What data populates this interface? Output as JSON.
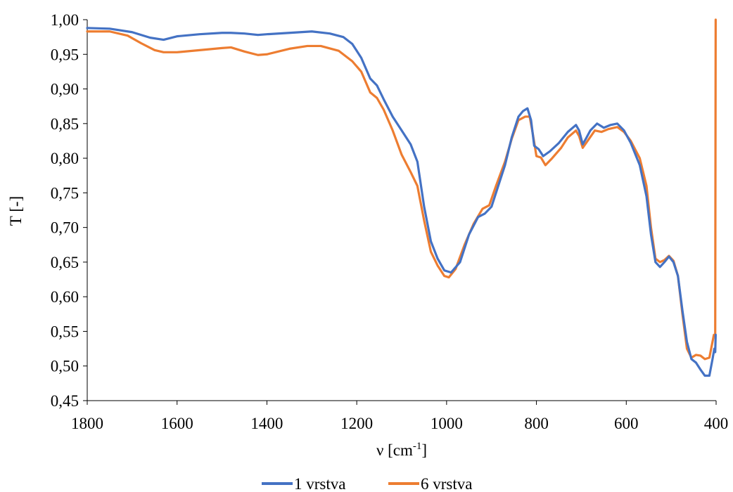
{
  "chart_data": {
    "type": "line",
    "title": "",
    "xlabel": "ν [cm-1]",
    "xlabel_parts": {
      "main": "ν [cm",
      "sup": "-1",
      "close": "]"
    },
    "ylabel": "T [-]",
    "xlim": [
      1800,
      400
    ],
    "x_reversed": true,
    "ylim": [
      0.45,
      1.0
    ],
    "x_ticks": [
      1800,
      1600,
      1400,
      1200,
      1000,
      800,
      600,
      400
    ],
    "x_tick_labels": [
      "1800",
      "1600",
      "1400",
      "1200",
      "1000",
      "800",
      "600",
      "400"
    ],
    "y_ticks": [
      0.45,
      0.5,
      0.55,
      0.6,
      0.65,
      0.7,
      0.75,
      0.8,
      0.85,
      0.9,
      0.95,
      1.0
    ],
    "y_tick_labels": [
      "0,45",
      "0,50",
      "0,55",
      "0,60",
      "0,65",
      "0,70",
      "0,75",
      "0,80",
      "0,85",
      "0,90",
      "0,95",
      "1,00"
    ],
    "grid": false,
    "legend_position": "bottom",
    "series": [
      {
        "name": "1 vrstva",
        "color": "#4472C4",
        "points": [
          [
            1800,
            0.988
          ],
          [
            1750,
            0.987
          ],
          [
            1700,
            0.982
          ],
          [
            1660,
            0.974
          ],
          [
            1630,
            0.971
          ],
          [
            1600,
            0.976
          ],
          [
            1550,
            0.979
          ],
          [
            1500,
            0.981
          ],
          [
            1480,
            0.981
          ],
          [
            1450,
            0.98
          ],
          [
            1420,
            0.978
          ],
          [
            1400,
            0.979
          ],
          [
            1350,
            0.981
          ],
          [
            1300,
            0.983
          ],
          [
            1260,
            0.98
          ],
          [
            1230,
            0.975
          ],
          [
            1210,
            0.965
          ],
          [
            1190,
            0.945
          ],
          [
            1170,
            0.915
          ],
          [
            1155,
            0.905
          ],
          [
            1140,
            0.885
          ],
          [
            1120,
            0.86
          ],
          [
            1100,
            0.84
          ],
          [
            1080,
            0.82
          ],
          [
            1065,
            0.795
          ],
          [
            1050,
            0.73
          ],
          [
            1035,
            0.68
          ],
          [
            1020,
            0.655
          ],
          [
            1005,
            0.638
          ],
          [
            990,
            0.635
          ],
          [
            970,
            0.65
          ],
          [
            950,
            0.69
          ],
          [
            930,
            0.715
          ],
          [
            915,
            0.72
          ],
          [
            900,
            0.73
          ],
          [
            885,
            0.76
          ],
          [
            870,
            0.79
          ],
          [
            855,
            0.83
          ],
          [
            840,
            0.86
          ],
          [
            830,
            0.868
          ],
          [
            820,
            0.872
          ],
          [
            812,
            0.855
          ],
          [
            805,
            0.818
          ],
          [
            795,
            0.813
          ],
          [
            785,
            0.803
          ],
          [
            770,
            0.81
          ],
          [
            750,
            0.822
          ],
          [
            730,
            0.838
          ],
          [
            712,
            0.848
          ],
          [
            705,
            0.84
          ],
          [
            697,
            0.82
          ],
          [
            690,
            0.828
          ],
          [
            680,
            0.84
          ],
          [
            665,
            0.85
          ],
          [
            650,
            0.844
          ],
          [
            635,
            0.848
          ],
          [
            620,
            0.85
          ],
          [
            605,
            0.84
          ],
          [
            590,
            0.822
          ],
          [
            570,
            0.79
          ],
          [
            555,
            0.745
          ],
          [
            545,
            0.69
          ],
          [
            535,
            0.65
          ],
          [
            525,
            0.643
          ],
          [
            515,
            0.65
          ],
          [
            505,
            0.658
          ],
          [
            495,
            0.65
          ],
          [
            485,
            0.63
          ],
          [
            475,
            0.58
          ],
          [
            465,
            0.535
          ],
          [
            455,
            0.51
          ],
          [
            445,
            0.505
          ],
          [
            435,
            0.495
          ],
          [
            425,
            0.486
          ],
          [
            415,
            0.486
          ],
          [
            408,
            0.51
          ],
          [
            404,
            0.525
          ],
          [
            402,
            0.52
          ],
          [
            401,
            0.545
          ]
        ]
      },
      {
        "name": "6 vrstva",
        "color": "#ED7D31",
        "points": [
          [
            1800,
            0.983
          ],
          [
            1750,
            0.983
          ],
          [
            1710,
            0.977
          ],
          [
            1680,
            0.966
          ],
          [
            1650,
            0.956
          ],
          [
            1630,
            0.953
          ],
          [
            1600,
            0.953
          ],
          [
            1550,
            0.956
          ],
          [
            1500,
            0.959
          ],
          [
            1480,
            0.96
          ],
          [
            1450,
            0.954
          ],
          [
            1420,
            0.949
          ],
          [
            1400,
            0.95
          ],
          [
            1350,
            0.958
          ],
          [
            1310,
            0.962
          ],
          [
            1280,
            0.962
          ],
          [
            1240,
            0.955
          ],
          [
            1210,
            0.94
          ],
          [
            1190,
            0.925
          ],
          [
            1170,
            0.895
          ],
          [
            1155,
            0.887
          ],
          [
            1140,
            0.87
          ],
          [
            1120,
            0.84
          ],
          [
            1100,
            0.805
          ],
          [
            1080,
            0.78
          ],
          [
            1065,
            0.76
          ],
          [
            1050,
            0.71
          ],
          [
            1035,
            0.665
          ],
          [
            1020,
            0.645
          ],
          [
            1005,
            0.63
          ],
          [
            995,
            0.628
          ],
          [
            980,
            0.64
          ],
          [
            960,
            0.675
          ],
          [
            940,
            0.705
          ],
          [
            920,
            0.727
          ],
          [
            905,
            0.732
          ],
          [
            890,
            0.76
          ],
          [
            870,
            0.795
          ],
          [
            855,
            0.828
          ],
          [
            840,
            0.855
          ],
          [
            825,
            0.86
          ],
          [
            815,
            0.86
          ],
          [
            808,
            0.835
          ],
          [
            800,
            0.803
          ],
          [
            790,
            0.801
          ],
          [
            780,
            0.79
          ],
          [
            765,
            0.8
          ],
          [
            745,
            0.815
          ],
          [
            730,
            0.83
          ],
          [
            712,
            0.84
          ],
          [
            705,
            0.832
          ],
          [
            697,
            0.815
          ],
          [
            685,
            0.826
          ],
          [
            670,
            0.84
          ],
          [
            655,
            0.838
          ],
          [
            640,
            0.842
          ],
          [
            620,
            0.845
          ],
          [
            605,
            0.838
          ],
          [
            590,
            0.825
          ],
          [
            570,
            0.8
          ],
          [
            555,
            0.76
          ],
          [
            545,
            0.7
          ],
          [
            535,
            0.655
          ],
          [
            525,
            0.65
          ],
          [
            515,
            0.653
          ],
          [
            505,
            0.659
          ],
          [
            495,
            0.652
          ],
          [
            485,
            0.63
          ],
          [
            475,
            0.575
          ],
          [
            465,
            0.525
          ],
          [
            455,
            0.512
          ],
          [
            445,
            0.516
          ],
          [
            435,
            0.515
          ],
          [
            425,
            0.51
          ],
          [
            415,
            0.512
          ],
          [
            405,
            0.545
          ],
          [
            402,
            0.545
          ],
          [
            401,
            1.0
          ]
        ]
      }
    ]
  }
}
